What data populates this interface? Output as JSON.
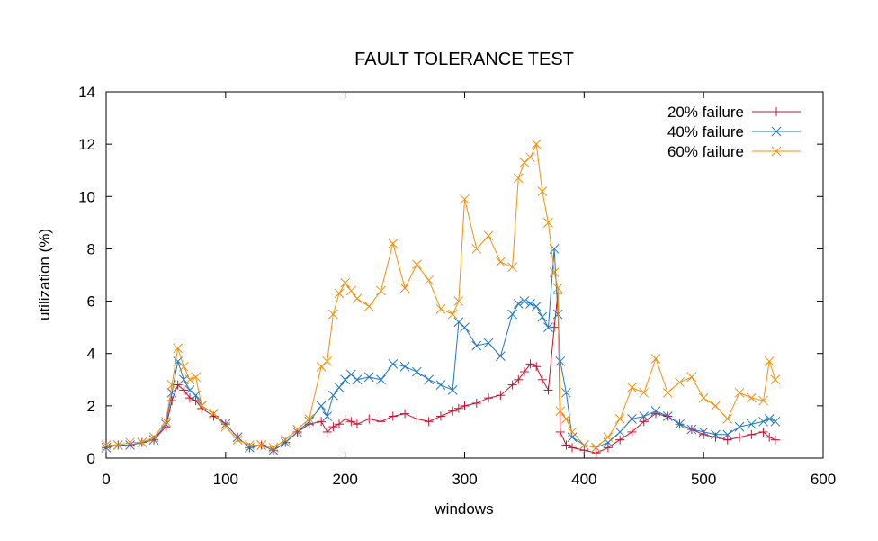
{
  "chart_data": {
    "type": "line",
    "title": "FAULT TOLERANCE TEST",
    "xlabel": "windows",
    "ylabel": "utilization (%)",
    "xlim": [
      0,
      600
    ],
    "ylim": [
      0,
      14
    ],
    "x_ticks": [
      "0",
      "100",
      "200",
      "300",
      "400",
      "500",
      "600"
    ],
    "y_ticks": [
      "0",
      "2",
      "4",
      "6",
      "8",
      "10",
      "12",
      "14"
    ],
    "grid": false,
    "legend_position": "top-right",
    "series": [
      {
        "name": "20% failure",
        "color": "#c8102e",
        "marker": "plus",
        "x": [
          0,
          10,
          20,
          30,
          40,
          50,
          55,
          60,
          65,
          70,
          75,
          80,
          90,
          100,
          110,
          120,
          130,
          140,
          150,
          160,
          170,
          180,
          185,
          190,
          195,
          200,
          205,
          210,
          220,
          230,
          240,
          250,
          260,
          270,
          280,
          290,
          295,
          300,
          310,
          320,
          330,
          340,
          345,
          350,
          355,
          360,
          365,
          370,
          375,
          378,
          380,
          385,
          390,
          400,
          410,
          420,
          430,
          440,
          450,
          460,
          470,
          480,
          490,
          500,
          510,
          520,
          530,
          540,
          550,
          555,
          560
        ],
        "y": [
          0.4,
          0.5,
          0.5,
          0.6,
          0.7,
          1.2,
          2.2,
          2.8,
          2.6,
          2.3,
          2.2,
          1.9,
          1.6,
          1.3,
          0.8,
          0.4,
          0.5,
          0.3,
          0.6,
          1.0,
          1.3,
          1.4,
          1.0,
          1.2,
          1.3,
          1.5,
          1.4,
          1.3,
          1.5,
          1.4,
          1.6,
          1.7,
          1.5,
          1.4,
          1.6,
          1.8,
          1.9,
          2.0,
          2.1,
          2.3,
          2.4,
          2.8,
          3.0,
          3.3,
          3.6,
          3.5,
          3.0,
          2.6,
          5.0,
          6.3,
          1.0,
          0.5,
          0.4,
          0.3,
          0.2,
          0.4,
          0.7,
          1.0,
          1.4,
          1.7,
          1.6,
          1.3,
          1.1,
          0.9,
          0.8,
          0.7,
          0.8,
          0.9,
          1.0,
          0.8,
          0.7
        ]
      },
      {
        "name": "40% failure",
        "color": "#1f77c4",
        "marker": "cross",
        "x": [
          0,
          10,
          20,
          30,
          40,
          50,
          55,
          60,
          65,
          70,
          75,
          80,
          90,
          100,
          110,
          120,
          130,
          140,
          150,
          160,
          170,
          180,
          185,
          190,
          195,
          200,
          205,
          210,
          220,
          230,
          240,
          250,
          260,
          270,
          280,
          290,
          295,
          300,
          310,
          320,
          330,
          340,
          345,
          350,
          355,
          360,
          365,
          370,
          375,
          378,
          380,
          385,
          390,
          400,
          410,
          420,
          430,
          440,
          450,
          460,
          470,
          480,
          490,
          500,
          510,
          520,
          530,
          540,
          550,
          555,
          560
        ],
        "y": [
          0.4,
          0.5,
          0.5,
          0.6,
          0.7,
          1.3,
          2.5,
          3.7,
          3.0,
          2.6,
          2.4,
          2.0,
          1.7,
          1.3,
          0.8,
          0.4,
          0.5,
          0.3,
          0.6,
          1.0,
          1.4,
          2.0,
          1.6,
          2.4,
          2.7,
          3.0,
          3.2,
          3.0,
          3.1,
          3.0,
          3.6,
          3.5,
          3.3,
          3.0,
          2.8,
          2.6,
          5.2,
          5.0,
          4.3,
          4.4,
          3.9,
          5.5,
          5.9,
          6.0,
          5.9,
          5.8,
          5.4,
          5.0,
          8.0,
          5.5,
          3.7,
          2.5,
          0.8,
          0.5,
          0.4,
          0.6,
          1.0,
          1.5,
          1.6,
          1.8,
          1.6,
          1.3,
          1.1,
          1.0,
          0.9,
          0.9,
          1.2,
          1.3,
          1.4,
          1.5,
          1.4
        ]
      },
      {
        "name": "60% failure",
        "color": "#f0900a",
        "marker": "cross",
        "x": [
          0,
          10,
          20,
          30,
          40,
          50,
          55,
          60,
          65,
          70,
          75,
          80,
          90,
          100,
          110,
          120,
          130,
          140,
          150,
          160,
          170,
          180,
          185,
          190,
          195,
          200,
          205,
          210,
          220,
          230,
          240,
          250,
          260,
          270,
          280,
          290,
          295,
          300,
          310,
          320,
          330,
          340,
          345,
          350,
          355,
          360,
          365,
          370,
          375,
          378,
          380,
          385,
          390,
          400,
          410,
          420,
          430,
          440,
          450,
          460,
          470,
          480,
          490,
          500,
          510,
          520,
          530,
          540,
          550,
          555,
          560
        ],
        "y": [
          0.5,
          0.5,
          0.6,
          0.6,
          0.8,
          1.4,
          2.8,
          4.2,
          3.5,
          3.0,
          3.1,
          2.0,
          1.7,
          1.2,
          0.7,
          0.5,
          0.5,
          0.4,
          0.7,
          1.1,
          1.5,
          3.5,
          3.7,
          5.5,
          6.3,
          6.7,
          6.4,
          6.1,
          5.8,
          6.4,
          8.2,
          6.5,
          7.4,
          6.8,
          5.7,
          5.5,
          6.0,
          9.9,
          8.0,
          8.5,
          7.5,
          7.3,
          10.7,
          11.3,
          11.5,
          12.0,
          10.2,
          9.0,
          7.1,
          6.5,
          1.8,
          1.5,
          1.0,
          0.5,
          0.4,
          0.8,
          1.5,
          2.7,
          2.5,
          3.8,
          2.5,
          2.9,
          3.1,
          2.3,
          2.0,
          1.5,
          2.5,
          2.3,
          2.2,
          3.7,
          3.0
        ]
      }
    ]
  }
}
